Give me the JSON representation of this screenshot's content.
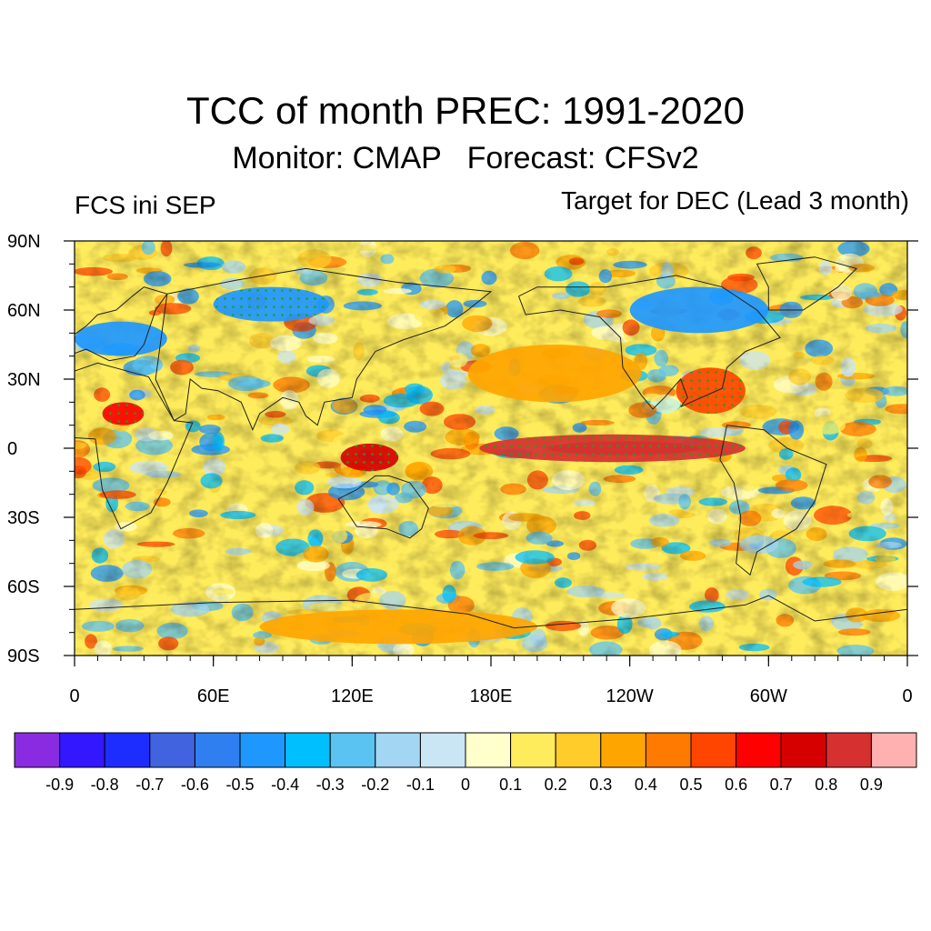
{
  "header": {
    "title": "TCC of month PREC: 1991-2020",
    "subtitle": "Monitor: CMAP   Forecast: CFSv2",
    "left_label": "FCS ini SEP",
    "right_label": "Target for DEC (Lead 3 month)"
  },
  "map": {
    "y_axis_labels": [
      "90N",
      "60N",
      "30N",
      "0",
      "30S",
      "60S",
      "90S"
    ],
    "x_axis_labels": [
      "0",
      "60E",
      "120E",
      "180E",
      "120W",
      "60W",
      "0"
    ],
    "projection": "cylindrical-equidistant",
    "features": [
      {
        "name": "equatorial-pacific-max",
        "lon": [
          175,
          290
        ],
        "lat": [
          -6,
          6
        ],
        "value": 0.8
      },
      {
        "name": "equatorial-pacific-core",
        "lon": [
          205,
          270
        ],
        "lat": [
          -3,
          3
        ],
        "value": 0.9
      },
      {
        "name": "maritime-continent-max",
        "lon": [
          115,
          140
        ],
        "lat": [
          -10,
          2
        ],
        "value": 0.7
      },
      {
        "name": "sahara-spot",
        "lon": [
          12,
          30
        ],
        "lat": [
          10,
          20
        ],
        "value": 0.6
      },
      {
        "name": "north-pacific-positive",
        "lon": [
          170,
          245
        ],
        "lat": [
          20,
          45
        ],
        "value": 0.4
      },
      {
        "name": "gulf-of-mexico-positive",
        "lon": [
          260,
          290
        ],
        "lat": [
          15,
          35
        ],
        "value": 0.5
      },
      {
        "name": "siberia-negative",
        "lon": [
          60,
          110
        ],
        "lat": [
          55,
          70
        ],
        "value": -0.5
      },
      {
        "name": "europe-negative",
        "lon": [
          0,
          40
        ],
        "lat": [
          40,
          55
        ],
        "value": -0.4
      },
      {
        "name": "canada-negative",
        "lon": [
          240,
          300
        ],
        "lat": [
          50,
          70
        ],
        "value": -0.4
      },
      {
        "name": "southern-ocean-positive",
        "lon": [
          80,
          200
        ],
        "lat": [
          -85,
          -70
        ],
        "value": 0.4
      }
    ]
  },
  "colorbar": {
    "colors": [
      "#8a2be2",
      "#3217ff",
      "#1e2dff",
      "#4163e0",
      "#2f7ff0",
      "#1e97ff",
      "#00bfff",
      "#5bc3f2",
      "#a3d6f2",
      "#cae6f5",
      "#ffffcc",
      "#ffec5c",
      "#ffcc29",
      "#ffa500",
      "#ff7a00",
      "#ff4500",
      "#ff0000",
      "#d60000",
      "#d63030",
      "#ffb0b0"
    ],
    "labels": [
      "-0.9",
      "-0.8",
      "-0.7",
      "-0.6",
      "-0.5",
      "-0.4",
      "-0.3",
      "-0.2",
      "-0.1",
      "0",
      "0.1",
      "0.2",
      "0.3",
      "0.4",
      "0.5",
      "0.6",
      "0.7",
      "0.8",
      "0.9"
    ]
  }
}
